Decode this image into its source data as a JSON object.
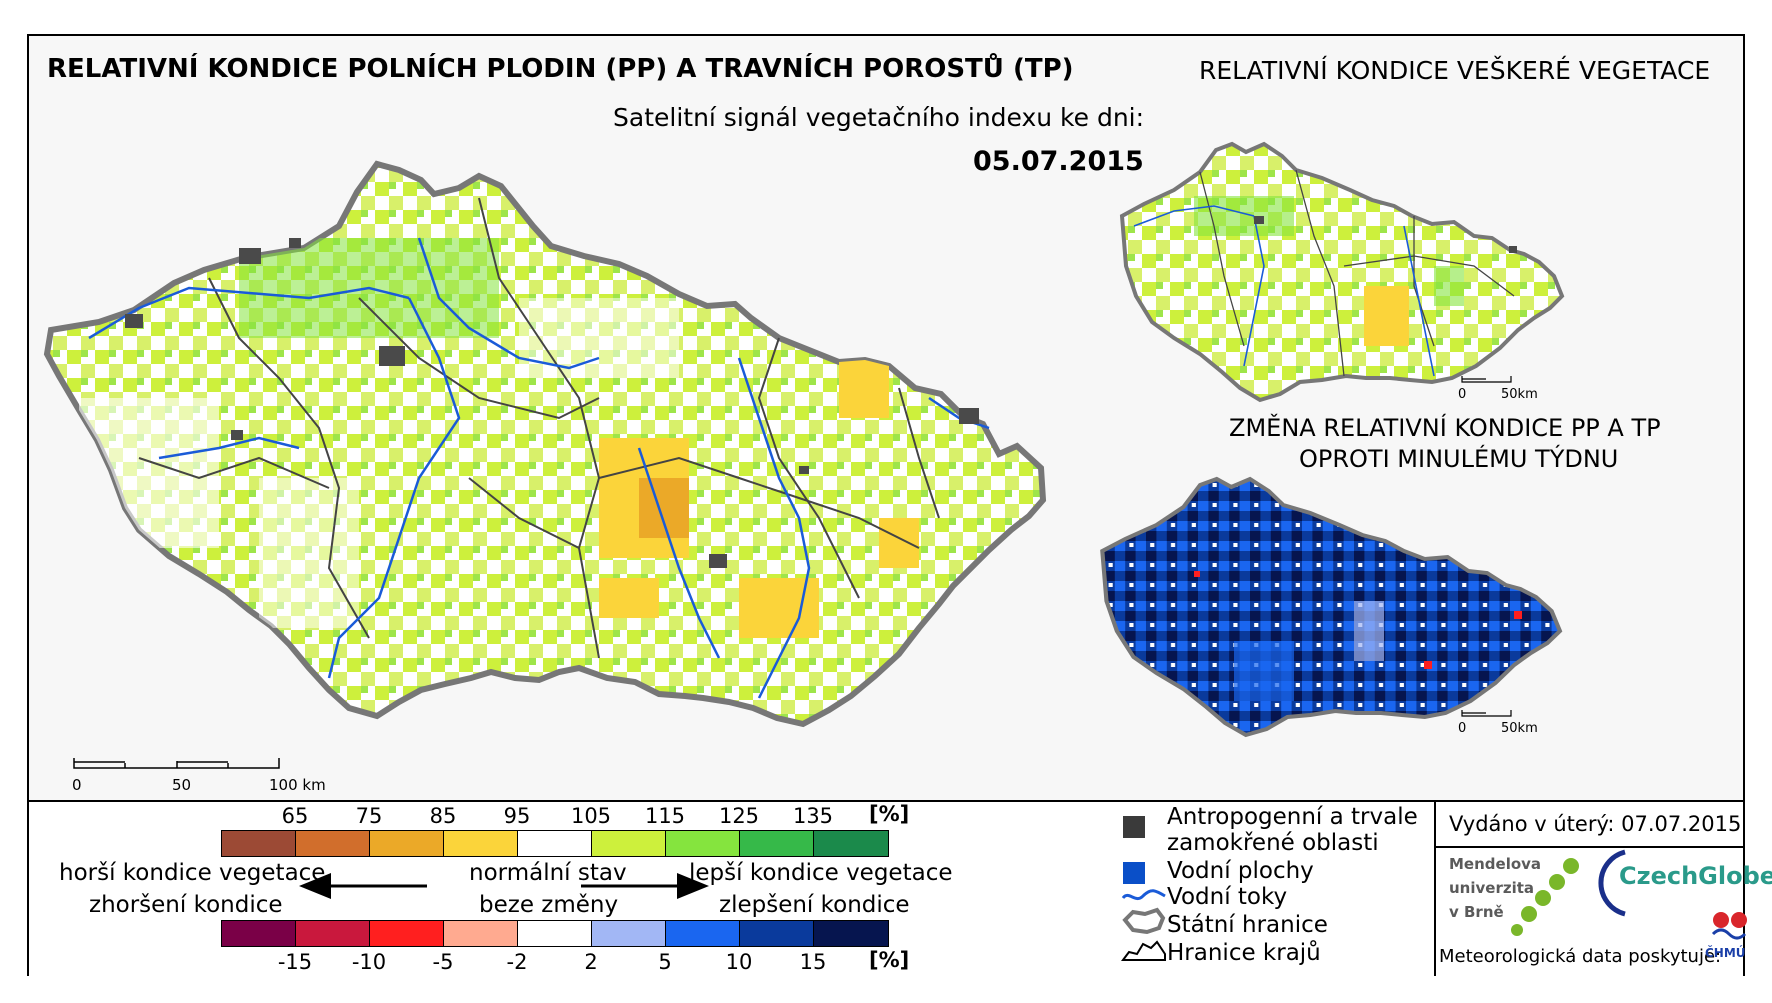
{
  "titles": {
    "main": "RELATIVNÍ KONDICE POLNÍCH PLODIN (PP) A TRAVNÍCH POROSTŮ (TP)",
    "signal": "Satelitní signál vegetačního indexu ke dni:",
    "date": "05.07.2015",
    "side": "RELATIVNÍ KONDICE VEŠKERÉ VEGETACE",
    "change_line1": "ZMĚNA RELATIVNÍ KONDICE PP A TP",
    "change_line2": "OPROTI MINULÉMU TÝDNU"
  },
  "main_scalebar": {
    "labels": [
      "0",
      "50",
      "100 km"
    ]
  },
  "inset_scalebar": {
    "labels": [
      "0",
      "50km"
    ]
  },
  "legend": {
    "condition_ticks": [
      "65",
      "75",
      "85",
      "95",
      "105",
      "115",
      "125",
      "135"
    ],
    "condition_unit": "[%]",
    "condition_colors": [
      "#9c4a35",
      "#d16e2c",
      "#eba928",
      "#fbd43a",
      "#ffffff",
      "#cdf03c",
      "#85e43e",
      "#36b949",
      "#1b8a4b"
    ],
    "change_ticks": [
      "-15",
      "-10",
      "-5",
      "-2",
      "2",
      "5",
      "10",
      "15"
    ],
    "change_unit": "[%]",
    "change_colors": [
      "#7a0047",
      "#c9183d",
      "#ff1f1f",
      "#ffaa90",
      "#ffffff",
      "#a2b7f5",
      "#1a66f0",
      "#0a3a9c",
      "#06154f"
    ],
    "worse_line1": "horší kondice vegetace",
    "worse_line2": "zhoršení kondice",
    "normal_line1": "normální stav",
    "normal_line2": "beze změny",
    "better_line1": "lepší kondice vegetace",
    "better_line2": "zlepšení kondice"
  },
  "key": {
    "anthropogenic_line1": "Antropogenní a trvale",
    "anthropogenic_line2": "zamokřené oblasti",
    "water_bodies": "Vodní plochy",
    "rivers": "Vodní toky",
    "state_border": "Státní hranice",
    "region_border": "Hranice krajů"
  },
  "issued": "Vydáno v úterý: 07.07.2015",
  "logos": {
    "mendel_line1": "Mendelova",
    "mendel_line2": "univerzita",
    "mendel_line3": "v Brně",
    "czechglobe": "CzechGlobe",
    "chmu": "ČHMÚ"
  },
  "data_provider": "Meteorologická data poskytuje:"
}
